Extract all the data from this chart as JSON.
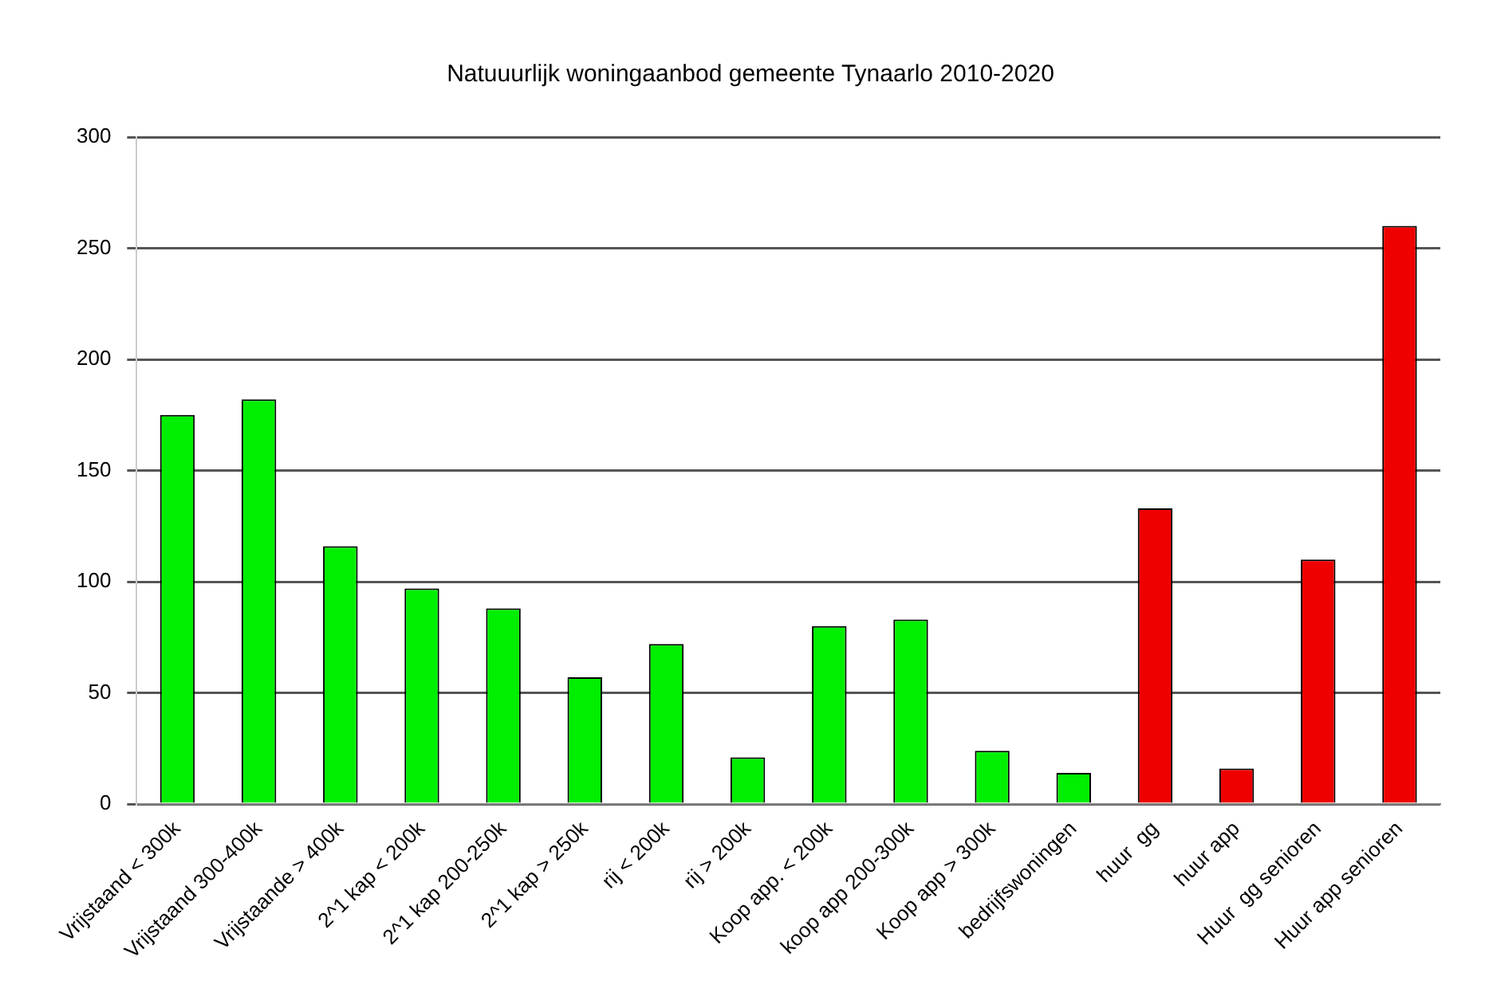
{
  "chart_data": {
    "type": "bar",
    "title": "Natuuurlijk woningaanbod gemeente Tynaarlo 2010-2020",
    "categories": [
      "Vrijstaand < 300k",
      "Vrijstaand 300-400k",
      "Vrijstaande > 400k",
      "2^1 kap < 200k",
      "2^1 kap 200-250k",
      "2^1 kap > 250k",
      "rij < 200k",
      "rij > 200k",
      "Koop app. < 200k",
      "koop app 200-300k",
      "Koop app > 300k",
      "bedrijfswoningen",
      "huur  gg",
      "huur app",
      "Huur  gg senioren",
      "Huur app senioren"
    ],
    "values": [
      175,
      182,
      116,
      97,
      88,
      57,
      72,
      21,
      80,
      83,
      24,
      14,
      133,
      16,
      110,
      260
    ],
    "colors": [
      "#00ee00",
      "#00ee00",
      "#00ee00",
      "#00ee00",
      "#00ee00",
      "#00ee00",
      "#00ee00",
      "#00ee00",
      "#00ee00",
      "#00ee00",
      "#00ee00",
      "#00ee00",
      "#ee0000",
      "#ee0000",
      "#ee0000",
      "#ee0000"
    ],
    "ylim": [
      0,
      300
    ],
    "yticks": [
      0,
      50,
      100,
      150,
      200,
      250,
      300
    ],
    "grid": "y",
    "legend": false
  }
}
